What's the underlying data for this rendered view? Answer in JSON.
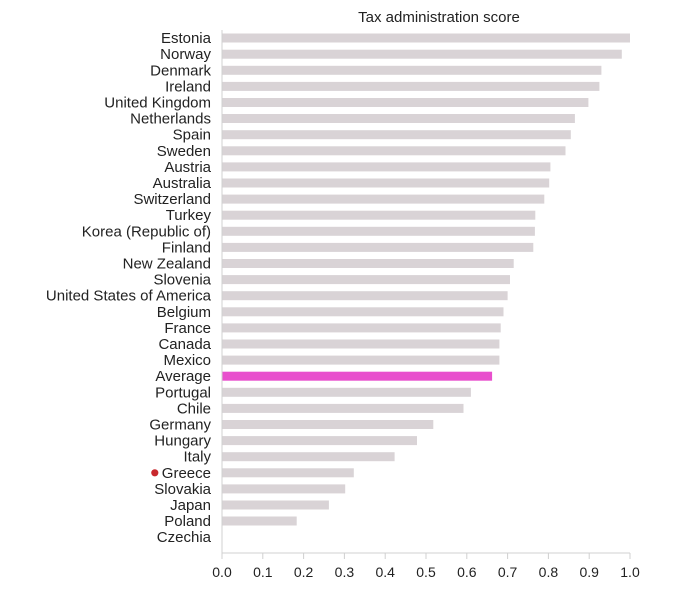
{
  "chart_data": {
    "type": "bar",
    "orientation": "horizontal",
    "title": "Tax administration score",
    "xlabel": "",
    "ylabel": "",
    "xlim": [
      0,
      1.0
    ],
    "x_ticks": [
      "0.0",
      "0.1",
      "0.2",
      "0.3",
      "0.4",
      "0.5",
      "0.6",
      "0.7",
      "0.8",
      "0.9",
      "1.0"
    ],
    "grid": false,
    "categories": [
      "Estonia",
      "Norway",
      "Denmark",
      "Ireland",
      "United Kingdom",
      "Netherlands",
      "Spain",
      "Sweden",
      "Austria",
      "Australia",
      "Switzerland",
      "Turkey",
      "Korea (Republic of)",
      "Finland",
      "New Zealand",
      "Slovenia",
      "United States of America",
      "Belgium",
      "France",
      "Canada",
      "Mexico",
      "Average",
      "Portugal",
      "Chile",
      "Germany",
      "Hungary",
      "Italy",
      "Greece",
      "Slovakia",
      "Japan",
      "Poland",
      "Czechia"
    ],
    "values": [
      1.0,
      0.98,
      0.93,
      0.925,
      0.898,
      0.865,
      0.855,
      0.842,
      0.805,
      0.802,
      0.79,
      0.768,
      0.767,
      0.763,
      0.715,
      0.706,
      0.7,
      0.69,
      0.683,
      0.68,
      0.68,
      0.662,
      0.61,
      0.592,
      0.518,
      0.478,
      0.423,
      0.323,
      0.302,
      0.262,
      0.183,
      0.0
    ],
    "bar_color": "#d9d3d6",
    "highlight": {
      "category": "Average",
      "color": "#e84fcd"
    },
    "marker": {
      "category": "Greece",
      "color": "#c8282d"
    }
  }
}
